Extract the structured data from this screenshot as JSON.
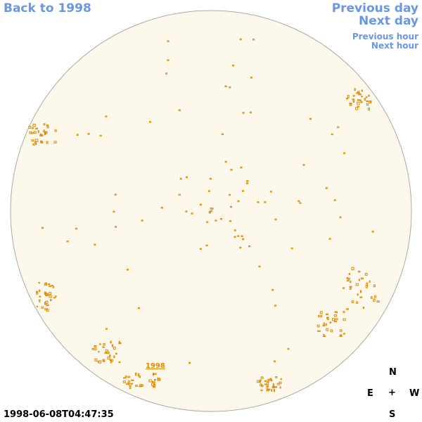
{
  "nav": {
    "back_label": "Back to 1998",
    "prev_day_label": "Previous day",
    "next_day_label": "Next day",
    "prev_hour_label": "Previous hour",
    "next_hour_label": "Next hour"
  },
  "sun": {
    "year_label": "1998",
    "disk_color": "#fdf8ec",
    "contour_color": "#e08a00"
  },
  "timestamp": "1998-06-08T04:47:35",
  "compass": {
    "north": "N",
    "east": "E",
    "center": "+",
    "west": "W",
    "south": "S"
  },
  "colors": {
    "link": "#6b96e0"
  }
}
